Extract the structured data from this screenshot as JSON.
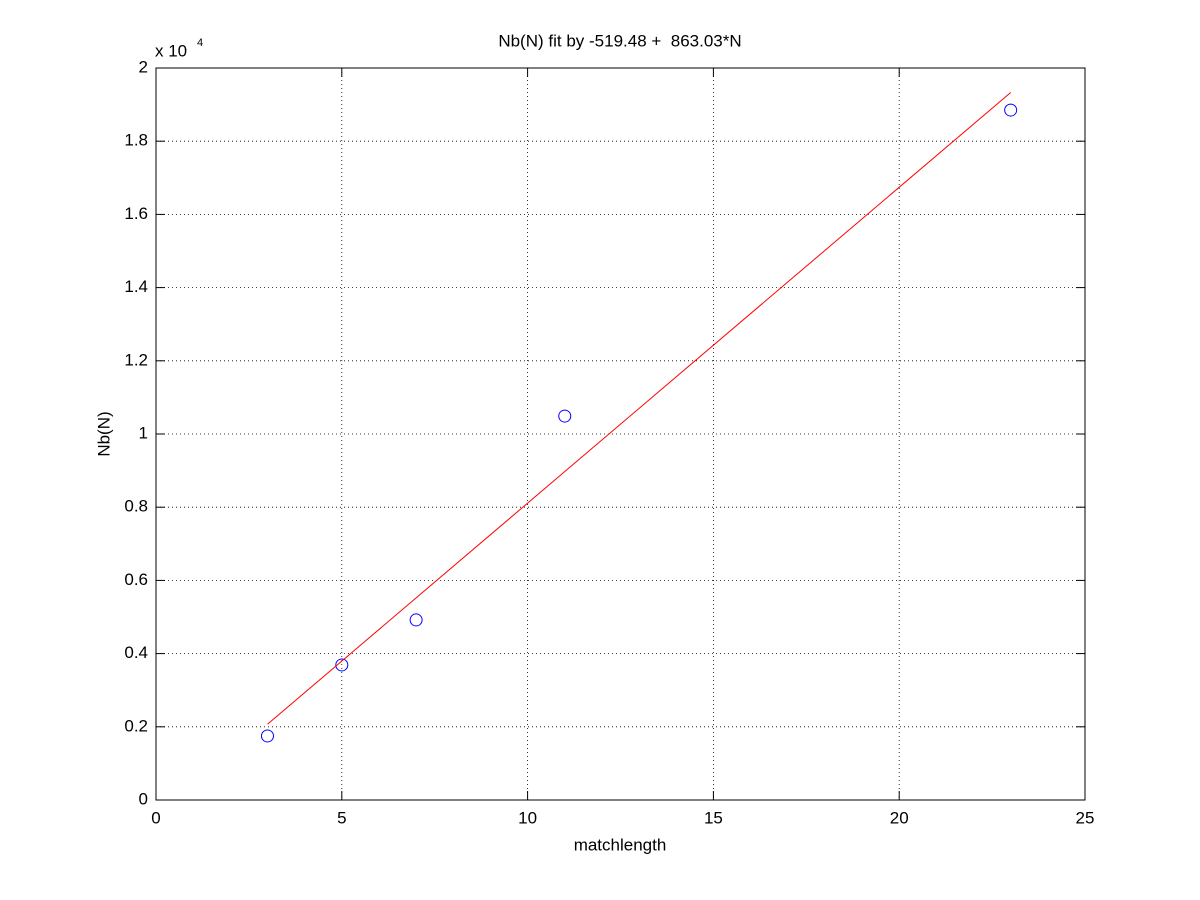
{
  "chart_data": {
    "type": "scatter",
    "title": "Nb(N) fit by -519.48 +  863.03*N",
    "x_label": "matchlength",
    "y_label": "Nb(N)",
    "y_exponent": {
      "base": "x 10",
      "power": "4"
    },
    "xlim": [
      0,
      25
    ],
    "xticks": [
      0,
      5,
      10,
      15,
      20,
      25
    ],
    "ylim": [
      0,
      20000
    ],
    "yticks": [
      0,
      {
        "value": 2000,
        "label": "0.2"
      },
      {
        "value": 4000,
        "label": "0.4"
      },
      {
        "value": 6000,
        "label": "0.6"
      },
      {
        "value": 8000,
        "label": "0.8"
      },
      {
        "value": 10000,
        "label": "1"
      },
      {
        "value": 12000,
        "label": "1.2"
      },
      {
        "value": 14000,
        "label": "1.4"
      },
      {
        "value": 16000,
        "label": "1.6"
      },
      {
        "value": 18000,
        "label": "1.8"
      },
      {
        "value": 20000,
        "label": "2"
      }
    ],
    "grid": true,
    "series": [
      {
        "mode": "markers",
        "marker": "circle",
        "color": "#0000ff",
        "x": [
          3,
          5,
          7,
          11,
          23
        ],
        "values": [
          1750,
          3690,
          4920,
          10490,
          18850
        ]
      },
      {
        "mode": "line",
        "color": "#ff0000",
        "x": [
          3,
          23
        ],
        "values": [
          2069.61,
          19330.21
        ]
      }
    ]
  }
}
